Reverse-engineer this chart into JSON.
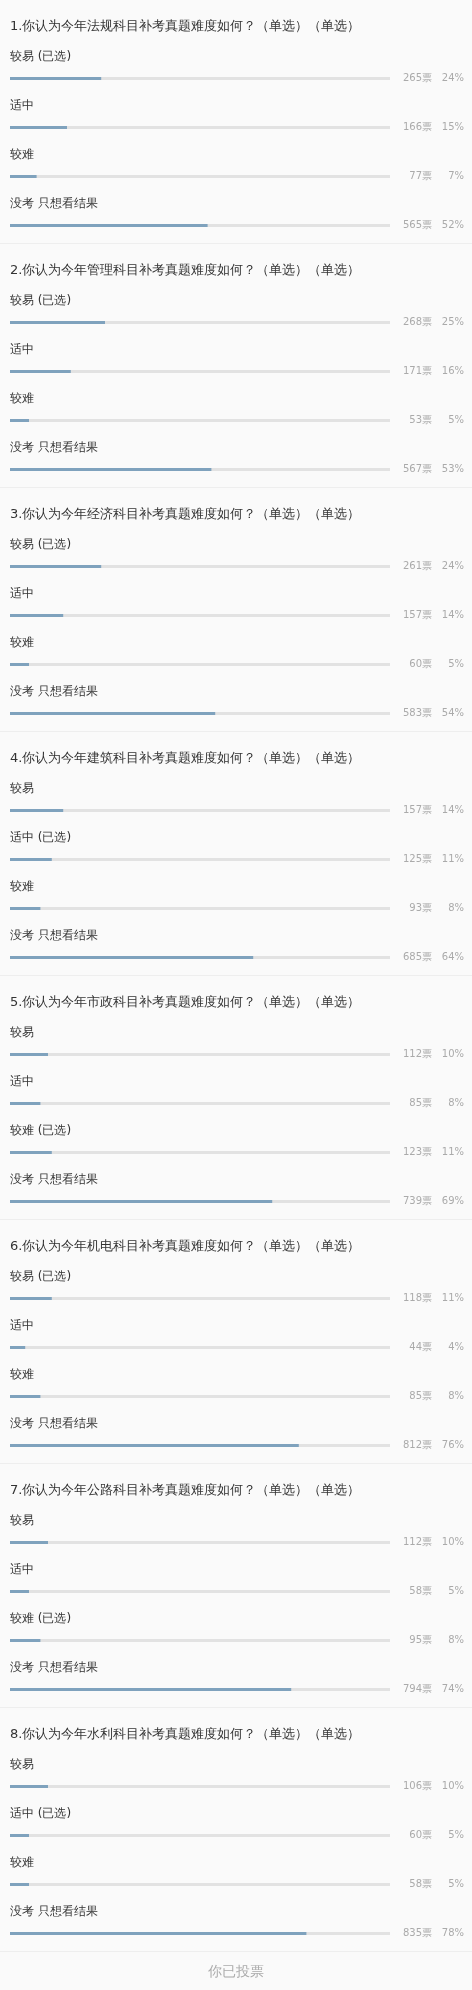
{
  "chart_data": [
    {
      "type": "bar",
      "orientation": "horizontal",
      "title": "1.你认为今年法规科目补考真题难度如何？（单选）（单选）",
      "categories": [
        "较易 (已选)",
        "适中",
        "较难",
        "没考 只想看结果"
      ],
      "values": [
        24,
        15,
        7,
        52
      ],
      "value_labels": [
        "24%",
        "15%",
        "7%",
        "52%"
      ],
      "color": "#7fa2bd",
      "xlim": [
        0,
        100
      ],
      "annotations": [
        "265票",
        "166票",
        "77票",
        "565票"
      ]
    },
    {
      "type": "bar",
      "orientation": "horizontal",
      "title": "2.你认为今年管理科目补考真题难度如何？（单选）（单选）",
      "categories": [
        "较易 (已选)",
        "适中",
        "较难",
        "没考 只想看结果"
      ],
      "values": [
        25,
        16,
        5,
        53
      ],
      "value_labels": [
        "25%",
        "16%",
        "5%",
        "53%"
      ],
      "color": "#7fa2bd",
      "xlim": [
        0,
        100
      ],
      "annotations": [
        "268票",
        "171票",
        "53票",
        "567票"
      ]
    },
    {
      "type": "bar",
      "orientation": "horizontal",
      "title": "3.你认为今年经济科目补考真题难度如何？（单选）（单选）",
      "categories": [
        "较易 (已选)",
        "适中",
        "较难",
        "没考 只想看结果"
      ],
      "values": [
        24,
        14,
        5,
        54
      ],
      "value_labels": [
        "24%",
        "14%",
        "5%",
        "54%"
      ],
      "color": "#7fa2bd",
      "xlim": [
        0,
        100
      ],
      "annotations": [
        "261票",
        "157票",
        "60票",
        "583票"
      ]
    },
    {
      "type": "bar",
      "orientation": "horizontal",
      "title": "4.你认为今年建筑科目补考真题难度如何？（单选）（单选）",
      "categories": [
        "较易",
        "适中 (已选)",
        "较难",
        "没考 只想看结果"
      ],
      "values": [
        14,
        11,
        8,
        64
      ],
      "value_labels": [
        "14%",
        "11%",
        "8%",
        "64%"
      ],
      "color": "#7fa2bd",
      "xlim": [
        0,
        100
      ],
      "annotations": [
        "157票",
        "125票",
        "93票",
        "685票"
      ]
    },
    {
      "type": "bar",
      "orientation": "horizontal",
      "title": "5.你认为今年市政科目补考真题难度如何？（单选）（单选）",
      "categories": [
        "较易",
        "适中",
        "较难 (已选)",
        "没考 只想看结果"
      ],
      "values": [
        10,
        8,
        11,
        69
      ],
      "value_labels": [
        "10%",
        "8%",
        "11%",
        "69%"
      ],
      "color": "#7fa2bd",
      "xlim": [
        0,
        100
      ],
      "annotations": [
        "112票",
        "85票",
        "123票",
        "739票"
      ]
    },
    {
      "type": "bar",
      "orientation": "horizontal",
      "title": "6.你认为今年机电科目补考真题难度如何？（单选）（单选）",
      "categories": [
        "较易 (已选)",
        "适中",
        "较难",
        "没考 只想看结果"
      ],
      "values": [
        11,
        4,
        8,
        76
      ],
      "value_labels": [
        "11%",
        "4%",
        "8%",
        "76%"
      ],
      "color": "#7fa2bd",
      "xlim": [
        0,
        100
      ],
      "annotations": [
        "118票",
        "44票",
        "85票",
        "812票"
      ]
    },
    {
      "type": "bar",
      "orientation": "horizontal",
      "title": "7.你认为今年公路科目补考真题难度如何？（单选）（单选）",
      "categories": [
        "较易",
        "适中",
        "较难 (已选)",
        "没考 只想看结果"
      ],
      "values": [
        10,
        5,
        8,
        74
      ],
      "value_labels": [
        "10%",
        "5%",
        "8%",
        "74%"
      ],
      "color": "#7fa2bd",
      "xlim": [
        0,
        100
      ],
      "annotations": [
        "112票",
        "58票",
        "95票",
        "794票"
      ]
    },
    {
      "type": "bar",
      "orientation": "horizontal",
      "title": "8.你认为今年水利科目补考真题难度如何？（单选）（单选）",
      "categories": [
        "较易",
        "适中 (已选)",
        "较难",
        "没考 只想看结果"
      ],
      "values": [
        10,
        5,
        5,
        78
      ],
      "value_labels": [
        "10%",
        "5%",
        "5%",
        "78%"
      ],
      "color": "#7fa2bd",
      "xlim": [
        0,
        100
      ],
      "annotations": [
        "106票",
        "60票",
        "58票",
        "835票"
      ]
    },
    {
      "type": "other",
      "title": "你已投票"
    }
  ]
}
